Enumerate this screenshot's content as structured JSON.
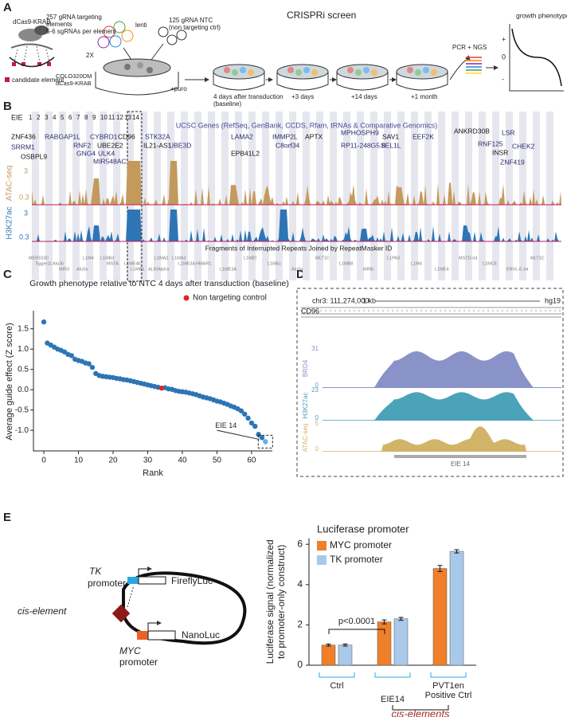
{
  "panel_labels": [
    "A",
    "B",
    "C",
    "D",
    "E"
  ],
  "panel_a": {
    "dcas9": "dCas9-KRAB",
    "candidate": "candidate element",
    "library_lines": [
      "257 gRNA targeting",
      "elements",
      "5-6 sgRNAs per element"
    ],
    "coverage": "2X",
    "lenti": "lenti",
    "ntc_lines": [
      "125 gRNA NTC",
      "(non targeting ctrl)"
    ],
    "cells_lines": [
      "COLO320DM",
      "dCas9-KRAB"
    ],
    "puro": "+puro",
    "title": "CRISPRi screen",
    "timepoints": [
      "4 days after transduction",
      "+3 days",
      "+14 days",
      "+1 month"
    ],
    "baseline": "(baseline)",
    "readout": "PCR + NGS",
    "phenotype_title": "growth phenotype",
    "phenotype_axis": [
      "+",
      "0",
      "-"
    ]
  },
  "panel_b": {
    "eie_label": "EIE",
    "eie_numbers": [
      "1",
      "2",
      "3",
      "4",
      "5",
      "6",
      "7",
      "8",
      "9",
      "10",
      "11",
      "12",
      "13",
      "14"
    ],
    "genes_title": "UCSC Genes (RefSeq, GenBank, CCDS, Rfam, tRNAs & Comparative Genomics)",
    "genes": [
      "ZNF436",
      "RABGAP1L",
      "CYBRD1",
      "CD96",
      "SRRM1",
      "RNF2",
      "UBE2E2",
      "GNG4",
      "ULK4",
      "OSBPL9",
      "MIR548AC",
      "STK32A",
      "IL21-AS1",
      "UBE3D",
      "LAMA2",
      "EPB41L2",
      "IMMP2L",
      "C8orf34",
      "APTX",
      "MPHOSPH9",
      "RP11-248G5.8",
      "SAV1",
      "SEL1L",
      "EEF2K",
      "ANKRD30B",
      "LSR",
      "RNF125",
      "INSR",
      "CHEK2",
      "ZNF419"
    ],
    "tracks": [
      {
        "name": "ATAC-seq",
        "scale": [
          "3",
          "0.3"
        ]
      },
      {
        "name": "H3K27ac",
        "scale": [
          "3",
          "0.3"
        ]
      }
    ],
    "repeats_title": "Fragments of Interrupted Repeats Joined by RepeatMasker ID",
    "repeats": [
      "MER103C",
      "AluJb",
      "AluSx",
      "L1MB3",
      "L1ME4b",
      "ALR/Alpha",
      "L1MA3",
      "HMAR1",
      "L1ME3A",
      "L1MEf",
      "L1MEc",
      "AluSx",
      "MLT1C",
      "L1MB8",
      "MIRb",
      "L1PA3",
      "L1M4",
      "L1ME4",
      "MSTD-int",
      "L1MC5",
      "ERVL-E-int",
      "MLT1C",
      "Tigger11",
      "MIR3",
      "L1M4",
      "MSTA",
      "L1ME1",
      "L1MA2",
      "L1ME3A"
    ]
  },
  "panel_d": {
    "coordinate": "chr3: 111,274,000",
    "scale": "1 kb",
    "assembly": "hg19",
    "gene": "CD96",
    "tracks": [
      {
        "name": "BRD4",
        "max": "31",
        "min": "0"
      },
      {
        "name": "H3K27ac",
        "max": "23",
        "min": "0"
      },
      {
        "name": "ATAC-seq",
        "max": "5",
        "min": "0"
      }
    ],
    "region": "EIE 14"
  },
  "panel_e": {
    "labels": [
      "TK",
      "promoter",
      "FireflyLuc",
      "cis-element",
      "MYC",
      "promoter",
      "NanoLuc"
    ]
  },
  "chart_data": [
    {
      "type": "scatter",
      "title": "Growth phenotype relative to NTC 4 days after transduction (baseline)",
      "xlabel": "Rank",
      "ylabel": "Average guide effect (Z score)",
      "xlim": [
        -3,
        66
      ],
      "xticks": [
        0,
        10,
        20,
        30,
        40,
        50,
        60
      ],
      "ylim": [
        -1.35,
        1.75
      ],
      "yticks": [
        {
          "value": -1,
          "label": "-1.0"
        },
        -0.5,
        {
          "value": 0,
          "label": "0.0"
        },
        0.5,
        {
          "value": 1,
          "label": "1.0"
        },
        1.5
      ],
      "legend": "upper right",
      "annotation": "EIE 14",
      "series": [
        {
          "color": "#2e75b6",
          "x": [
            0,
            1,
            2,
            3,
            4,
            5,
            6,
            7,
            8,
            9,
            10,
            11,
            12,
            13,
            14,
            15,
            16,
            17,
            18,
            19,
            20,
            21,
            22,
            23,
            24,
            25,
            26,
            27,
            28,
            29,
            30,
            31,
            32,
            33,
            35,
            36,
            37,
            38,
            39,
            40,
            41,
            42,
            43,
            44,
            45,
            46,
            47,
            48,
            49,
            50,
            51,
            52,
            53,
            54,
            55,
            56,
            57,
            58,
            59,
            60,
            61,
            62,
            63
          ],
          "values": [
            1.67,
            1.15,
            1.1,
            1.05,
            1.0,
            0.97,
            0.93,
            0.87,
            0.84,
            0.75,
            0.72,
            0.7,
            0.66,
            0.64,
            0.55,
            0.4,
            0.35,
            0.33,
            0.32,
            0.31,
            0.3,
            0.28,
            0.27,
            0.25,
            0.24,
            0.22,
            0.2,
            0.18,
            0.16,
            0.14,
            0.12,
            0.1,
            0.08,
            0.06,
            0.05,
            0.02,
            0.01,
            -0.02,
            -0.04,
            -0.05,
            -0.06,
            -0.08,
            -0.1,
            -0.12,
            -0.15,
            -0.18,
            -0.2,
            -0.22,
            -0.25,
            -0.28,
            -0.3,
            -0.33,
            -0.36,
            -0.4,
            -0.43,
            -0.47,
            -0.52,
            -0.6,
            -0.7,
            -0.82,
            -0.9,
            -1.1,
            -1.18
          ]
        },
        {
          "name": "Non targeting control",
          "color": "#d62728",
          "x": [
            34
          ],
          "values": [
            0.04
          ]
        },
        {
          "color": "#5ab4e6",
          "x": [
            64
          ],
          "values": [
            -1.28
          ]
        }
      ]
    },
    {
      "type": "bar",
      "title": "Luciferase promoter",
      "ylabel_lines": [
        "Luciferase signal (normalized",
        "to promoter-only construct)"
      ],
      "categories": [
        "Ctrl",
        "EIE14",
        "PVT1en Positive Ctrl"
      ],
      "ylim": [
        0,
        6.3
      ],
      "yticks": [
        0,
        2,
        4,
        6
      ],
      "series": [
        {
          "name": "MYC promoter",
          "color": "#f07f2a",
          "values": [
            1.0,
            2.15,
            4.8
          ],
          "errors": [
            0.05,
            0.1,
            0.15
          ]
        },
        {
          "name": "TK promoter",
          "color": "#a9c9ea",
          "values": [
            1.0,
            2.3,
            5.65
          ],
          "errors": [
            0.05,
            0.07,
            0.08
          ]
        }
      ],
      "pvalue": "p<0.0001",
      "group_label": "cis-elements"
    }
  ]
}
